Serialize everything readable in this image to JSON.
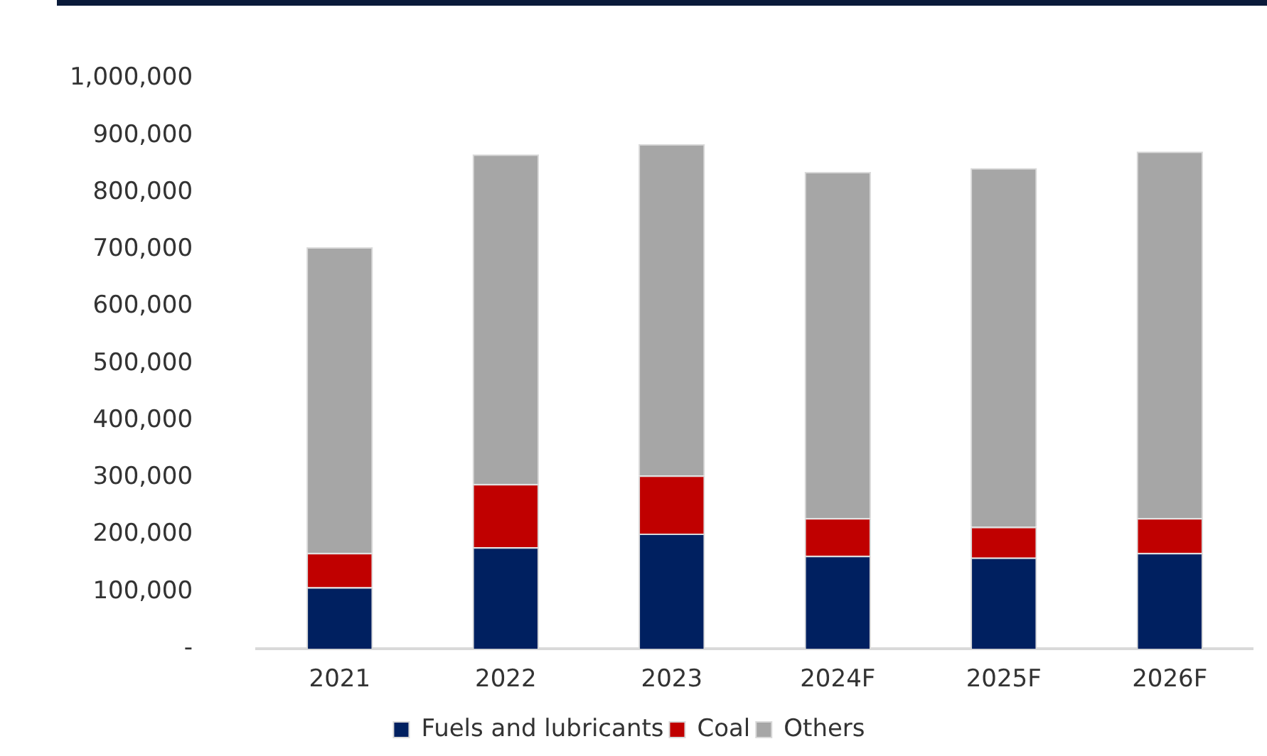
{
  "chart_data": {
    "type": "bar",
    "stacked": true,
    "categories": [
      "2021",
      "2022",
      "2023",
      "2024F",
      "2025F",
      "2026F"
    ],
    "series": [
      {
        "name": "Fuels and lubricants",
        "color": "#002060",
        "values": [
          108000,
          178000,
          202000,
          163000,
          160000,
          168000
        ]
      },
      {
        "name": "Coal",
        "color": "#c00000",
        "values": [
          60000,
          111000,
          102000,
          66000,
          54000,
          61000
        ]
      },
      {
        "name": "Others",
        "color": "#a6a6a6",
        "values": [
          536000,
          578000,
          581000,
          607000,
          629000,
          643000
        ]
      }
    ],
    "ylim": [
      0,
      1000000
    ],
    "yticks": [
      {
        "value": 0,
        "label": "-"
      },
      {
        "value": 100000,
        "label": "100,000"
      },
      {
        "value": 200000,
        "label": "200,000"
      },
      {
        "value": 300000,
        "label": "300,000"
      },
      {
        "value": 400000,
        "label": "400,000"
      },
      {
        "value": 500000,
        "label": "500,000"
      },
      {
        "value": 600000,
        "label": "600,000"
      },
      {
        "value": 700000,
        "label": "700,000"
      },
      {
        "value": 800000,
        "label": "800,000"
      },
      {
        "value": 900000,
        "label": "900,000"
      },
      {
        "value": 1000000,
        "label": "1,000,000"
      }
    ],
    "grid": false,
    "legend": "bottom"
  }
}
